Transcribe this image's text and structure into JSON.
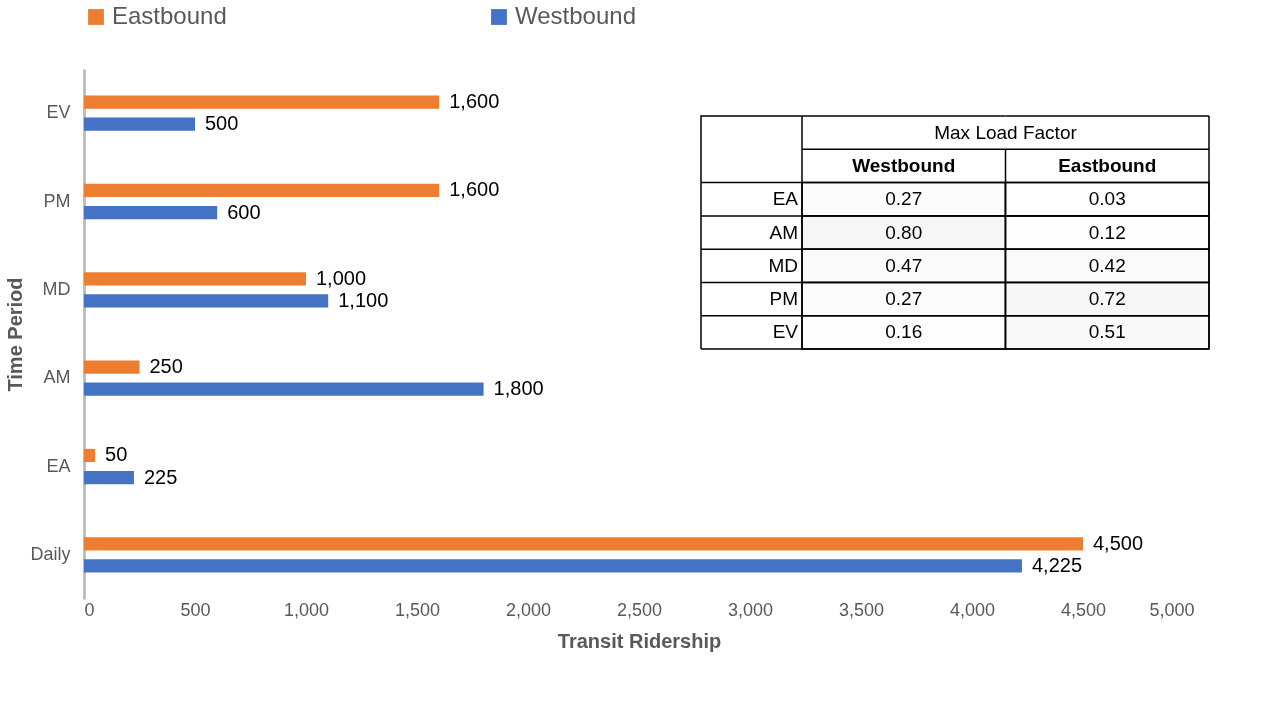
{
  "chart_data": [
    {
      "type": "bar",
      "orientation": "horizontal",
      "xlabel": "Transit Ridership",
      "ylabel": "Time Period",
      "categories": [
        "EV",
        "PM",
        "MD",
        "AM",
        "EA",
        "Daily"
      ],
      "series": [
        {
          "name": "Eastbound",
          "color": "#ed7d31",
          "values": [
            1600,
            1600,
            1000,
            250,
            50,
            4500
          ],
          "value_labels": [
            "1,600",
            "1,600",
            "1,000",
            "250",
            "50",
            "4,500"
          ]
        },
        {
          "name": "Westbound",
          "color": "#4472c4",
          "values": [
            500,
            600,
            1100,
            1800,
            225,
            4225
          ],
          "value_labels": [
            "500",
            "600",
            "1,100",
            "1,800",
            "225",
            "4,225"
          ]
        }
      ],
      "xlim": [
        0,
        5000
      ],
      "xticks": [
        0,
        500,
        {
          "value": 1000,
          "label": "1,000"
        },
        {
          "value": 1500,
          "label": "1,500"
        },
        {
          "value": 2000,
          "label": "2,000"
        },
        {
          "value": 2500,
          "label": "2,500"
        },
        {
          "value": 3000,
          "label": "3,000"
        },
        {
          "value": 3500,
          "label": "3,500"
        },
        {
          "value": 4000,
          "label": "4,000"
        },
        {
          "value": 4500,
          "label": "4,500"
        },
        {
          "value": 5000,
          "label": "5,000"
        }
      ],
      "grid": false,
      "legend": "top"
    },
    {
      "type": "heatmap",
      "title": "Max Load Factor",
      "categories": [
        "Westbound",
        "Eastbound"
      ],
      "y_categories": [
        "EA",
        "AM",
        "MD",
        "PM",
        "EV"
      ],
      "cells": [
        [
          0.27,
          0.03
        ],
        [
          0.8,
          0.12
        ],
        [
          0.47,
          0.42
        ],
        [
          0.27,
          0.72
        ],
        [
          0.16,
          0.51
        ]
      ],
      "cell_labels": [
        [
          "0.27",
          "0.03"
        ],
        [
          "0.80",
          "0.12"
        ],
        [
          "0.47",
          "0.42"
        ],
        [
          "0.27",
          "0.72"
        ],
        [
          "0.16",
          "0.51"
        ]
      ]
    }
  ]
}
